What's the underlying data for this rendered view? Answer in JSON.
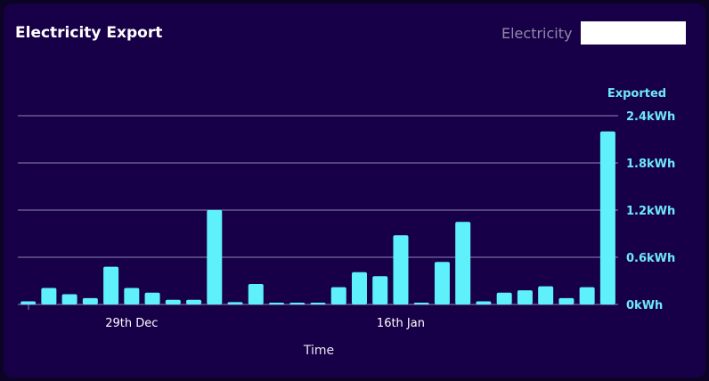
{
  "card": {
    "title": "Electricity Export"
  },
  "selector": {
    "label": "Electricity",
    "value": ""
  },
  "colors": {
    "background": "#180048",
    "bar": "#5ef1fb",
    "grid": "#8c86b4",
    "axis_text": "#6ee7f8"
  },
  "chart_data": {
    "type": "bar",
    "title": "Electricity Export",
    "xlabel": "Time",
    "ylabel": "Exported",
    "unit": "kWh",
    "ylim": [
      0,
      2.4
    ],
    "yticks": [
      "0kWh",
      "0.6kWh",
      "1.2kWh",
      "1.8kWh",
      "2.4kWh"
    ],
    "xtick_labels": [
      {
        "index": 5,
        "label": "29th Dec"
      },
      {
        "index": 18,
        "label": "16th Jan"
      }
    ],
    "grid": true,
    "values": [
      0.04,
      0.21,
      0.13,
      0.08,
      0.48,
      0.21,
      0.15,
      0.06,
      0.06,
      1.2,
      0.03,
      0.26,
      0.02,
      0.02,
      0.02,
      0.22,
      0.41,
      0.36,
      0.88,
      0.02,
      0.54,
      1.05,
      0.04,
      0.15,
      0.18,
      0.23,
      0.08,
      0.22,
      2.2
    ]
  }
}
